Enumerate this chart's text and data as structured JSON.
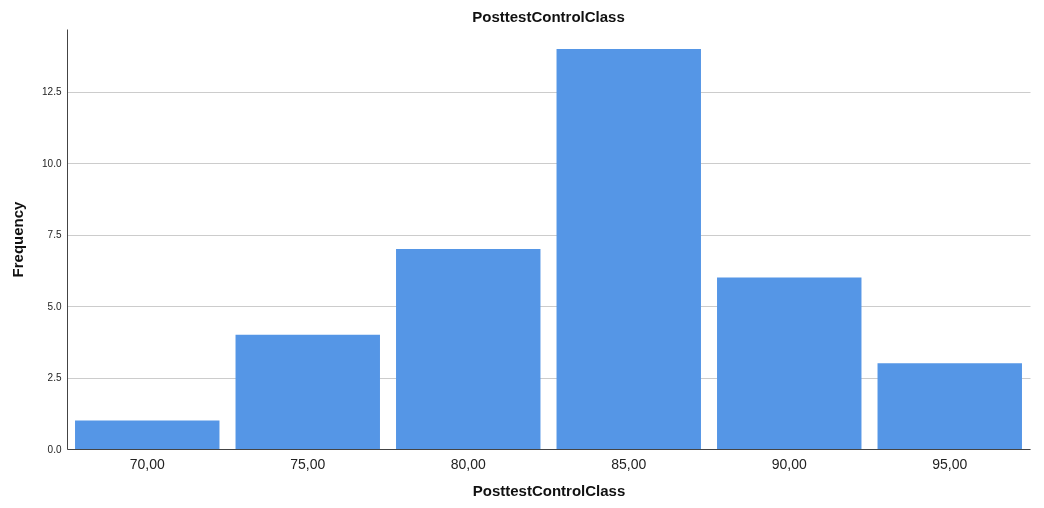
{
  "chart_data": {
    "type": "bar",
    "title": "PosttestControlClass",
    "xlabel": "PosttestControlClass",
    "ylabel": "Frequency",
    "categories": [
      "70,00",
      "75,00",
      "80,00",
      "85,00",
      "90,00",
      "95,00"
    ],
    "values": [
      1,
      4,
      7,
      14,
      6,
      3
    ],
    "color": "#5596e6",
    "ylim": [
      0,
      14.7
    ],
    "yticks": [
      {
        "value": 0,
        "label": "0.0"
      },
      {
        "value": 2.5,
        "label": "2.5"
      },
      {
        "value": 5,
        "label": "5.0"
      },
      {
        "value": 7.5,
        "label": "7.5"
      },
      {
        "value": 10,
        "label": "10.0"
      },
      {
        "value": 12.5,
        "label": "12.5"
      }
    ],
    "grid": "y"
  }
}
